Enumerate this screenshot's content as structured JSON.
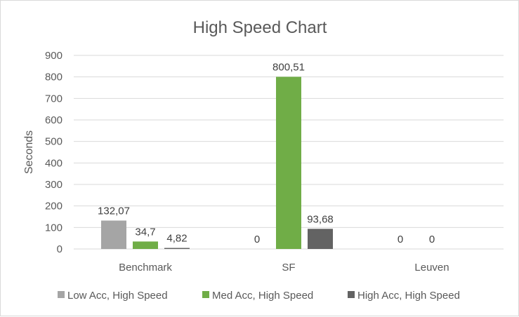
{
  "chart_data": {
    "type": "bar",
    "title": "High Speed Chart",
    "xlabel": "",
    "ylabel": "Seconds",
    "ylim": [
      0,
      900
    ],
    "yticks": [
      0,
      100,
      200,
      300,
      400,
      500,
      600,
      700,
      800,
      900
    ],
    "grid": true,
    "legend_position": "bottom",
    "categories": [
      "Benchmark",
      "SF",
      "Leuven"
    ],
    "series": [
      {
        "name": "Low Acc, High Speed",
        "color": "#a5a5a5",
        "values": [
          132.07,
          0,
          0
        ],
        "labels": [
          "132,07",
          "0",
          "0"
        ]
      },
      {
        "name": "Med Acc, High Speed",
        "color": "#70ad47",
        "values": [
          34.7,
          800.51,
          0
        ],
        "labels": [
          "34,7",
          "800,51",
          "0"
        ]
      },
      {
        "name": "High Acc, High Speed",
        "color": "#636363",
        "values": [
          4.82,
          93.68,
          0
        ],
        "labels": [
          "4,82",
          "93,68",
          ""
        ]
      }
    ]
  }
}
